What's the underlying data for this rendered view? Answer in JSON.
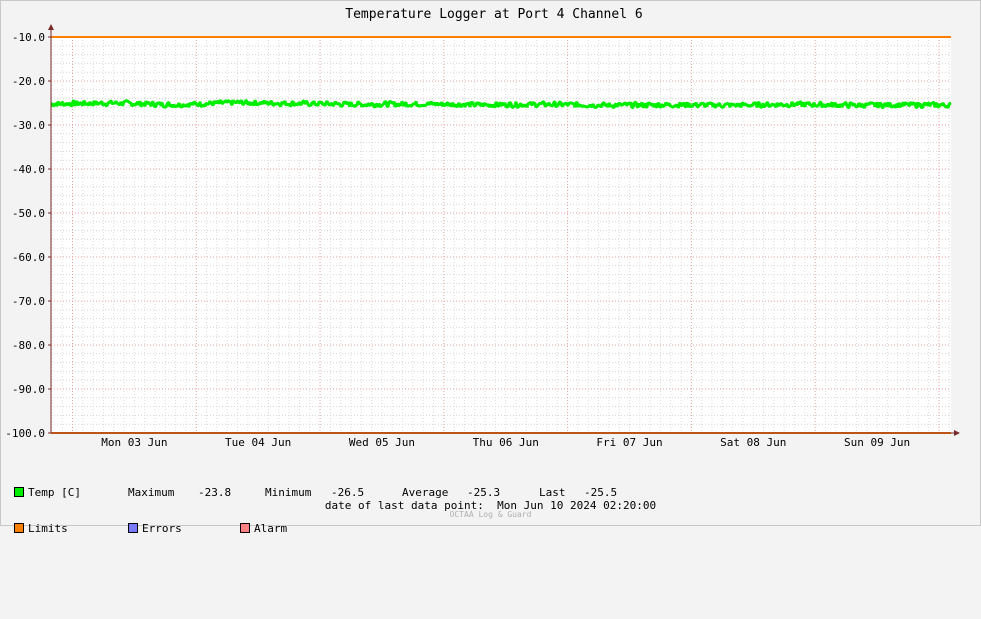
{
  "chart_data": {
    "type": "line",
    "title": "Temperature Logger at Port 4 Channel 6",
    "ylim": [
      -100,
      -10
    ],
    "y_tick_labels": [
      "-10.0",
      "-20.0",
      "-30.0",
      "-40.0",
      "-50.0",
      "-60.0",
      "-70.0",
      "-80.0",
      "-90.0",
      "-100.0"
    ],
    "x_tick_labels": [
      "Mon 03 Jun",
      "Tue 04 Jun",
      "Wed 05 Jun",
      "Thu 06 Jun",
      "Fri 07 Jun",
      "Sat 08 Jun",
      "Sun 09 Jun"
    ],
    "x_range": [
      "2024-06-02 19:50",
      "2024-06-10 02:20"
    ],
    "grid": true,
    "legend_position": "bottom-left",
    "series": [
      {
        "name": "Temp [C]",
        "color": "#00ee00",
        "x": [
          "2024-06-02 20:00",
          "2024-06-03 08:00",
          "2024-06-03 20:00",
          "2024-06-04 08:00",
          "2024-06-04 20:00",
          "2024-06-05 08:00",
          "2024-06-05 20:00",
          "2024-06-06 08:00",
          "2024-06-06 20:00",
          "2024-06-07 08:00",
          "2024-06-07 20:00",
          "2024-06-08 08:00",
          "2024-06-08 20:00",
          "2024-06-09 08:00",
          "2024-06-09 20:00",
          "2024-06-10 02:00"
        ],
        "values": [
          -25.2,
          -25.0,
          -25.4,
          -24.9,
          -25.1,
          -25.3,
          -25.2,
          -25.4,
          -25.3,
          -25.5,
          -25.4,
          -25.5,
          -25.3,
          -25.5,
          -25.4,
          -25.5
        ]
      },
      {
        "name": "Limits",
        "color": "#ff7f00",
        "values": [
          -10,
          -100
        ]
      }
    ]
  },
  "legend": {
    "temp_label": "Temp [C]",
    "maximum_label": "Maximum",
    "maximum_value": "-23.8",
    "minimum_label": "Minimum",
    "minimum_value": "-26.5",
    "average_label": "Average",
    "average_value": "-25.3",
    "last_label": "Last",
    "last_value": "-25.5",
    "limits_label": "Limits",
    "errors_label": "Errors",
    "alarm_label": "Alarm",
    "colors": {
      "temp": "#00ee00",
      "limits": "#ff7f00",
      "errors": "#7a7aff",
      "alarm": "#ff8080"
    }
  },
  "footer": {
    "date_label": "date of last data point:",
    "date_value": "Mon Jun 10 2024 02:20:00",
    "credit": "OCTAA Log & Guard"
  }
}
